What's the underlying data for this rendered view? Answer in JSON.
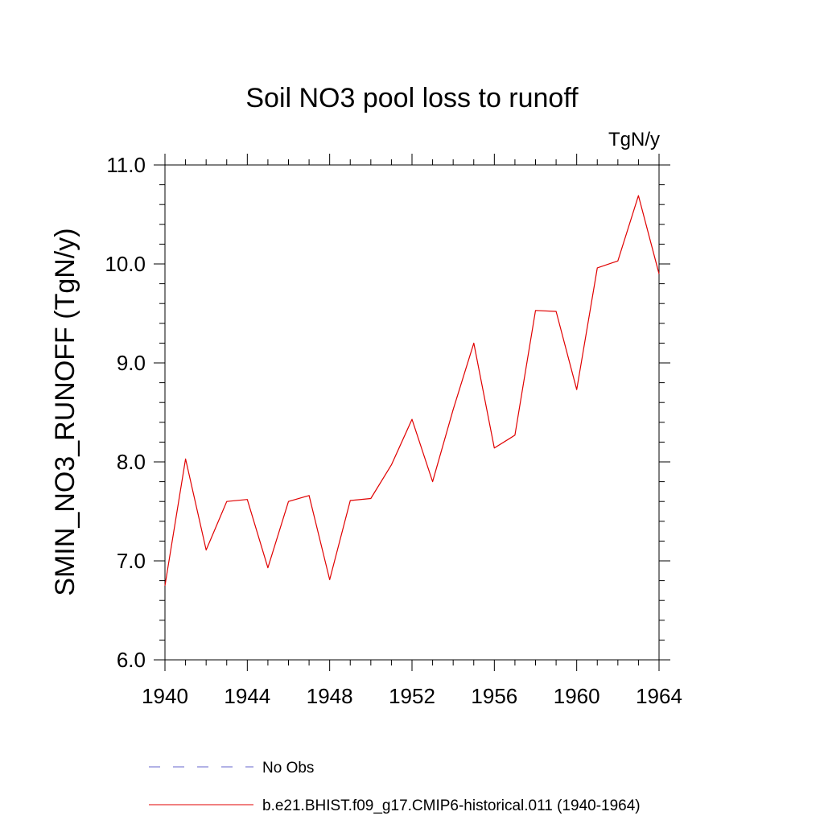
{
  "chart_data": {
    "type": "line",
    "title": "Soil NO3 pool loss to runoff",
    "units": "TgN/y",
    "xlabel": "",
    "ylabel": "SMIN_NO3_RUNOFF  (TgN/y)",
    "xlim": [
      1940,
      1964
    ],
    "ylim": [
      6.0,
      11.0
    ],
    "xticks": [
      1940,
      1944,
      1948,
      1952,
      1956,
      1960,
      1964
    ],
    "xtick_labels": [
      "1940",
      "1944",
      "1948",
      "1952",
      "1956",
      "1960",
      "1964"
    ],
    "yticks": [
      6.0,
      7.0,
      8.0,
      9.0,
      10.0,
      11.0
    ],
    "ytick_labels": [
      "6.0",
      "7.0",
      "8.0",
      "9.0",
      "10.0",
      "11.0"
    ],
    "grid": false,
    "legend_position": "bottom",
    "legend": [
      {
        "label": "No Obs",
        "color": "#6666cc",
        "style": "dashed"
      },
      {
        "label": "b.e21.BHIST.f09_g17.CMIP6-historical.011 (1940-1964)",
        "color": "#e00000",
        "style": "solid"
      }
    ],
    "series": [
      {
        "name": "b.e21.BHIST.f09_g17.CMIP6-historical.011 (1940-1964)",
        "color": "#e00000",
        "x": [
          1940,
          1941,
          1942,
          1943,
          1944,
          1945,
          1946,
          1947,
          1948,
          1949,
          1950,
          1951,
          1952,
          1953,
          1954,
          1955,
          1956,
          1957,
          1958,
          1959,
          1960,
          1961,
          1962,
          1963,
          1964
        ],
        "y": [
          6.75,
          8.03,
          7.11,
          7.6,
          7.62,
          6.93,
          7.6,
          7.66,
          6.81,
          7.61,
          7.63,
          7.97,
          8.43,
          7.8,
          8.53,
          9.2,
          8.14,
          8.27,
          9.53,
          9.52,
          8.73,
          9.96,
          10.03,
          10.69,
          9.9
        ]
      }
    ]
  }
}
